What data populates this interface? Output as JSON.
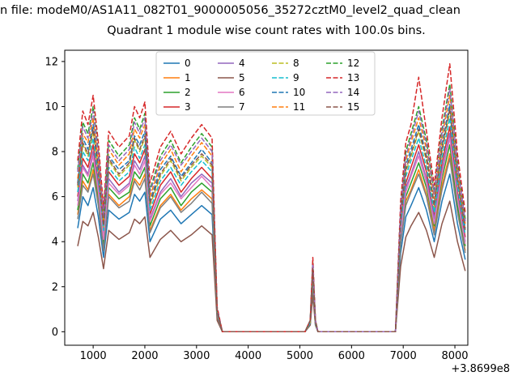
{
  "header": {
    "file_line": "n file: modeM0/AS1A11_082T01_9000005056_35272cztM0_level2_quad_clean"
  },
  "chart_data": {
    "type": "line",
    "title": "Quadrant 1 module wise count rates with 100.0s bins.",
    "xlabel": "",
    "ylabel": "",
    "x_offset_label": "+3.8699e8",
    "xlim": [
      450,
      8250
    ],
    "ylim": [
      -0.6,
      12.5
    ],
    "x_ticks": [
      1000,
      2000,
      3000,
      4000,
      5000,
      6000,
      7000,
      8000
    ],
    "y_ticks": [
      0,
      2,
      4,
      6,
      8,
      10,
      12
    ],
    "grid": false,
    "legend_loc": "upper center",
    "legend_columns": 4,
    "x": [
      700,
      800,
      900,
      1000,
      1100,
      1200,
      1300,
      1500,
      1700,
      1800,
      1900,
      2000,
      2100,
      2300,
      2500,
      2700,
      2900,
      3100,
      3300,
      3400,
      3500,
      5100,
      5200,
      5250,
      5300,
      5350,
      6850,
      6950,
      7050,
      7150,
      7300,
      7450,
      7600,
      7750,
      7900,
      8050,
      8200
    ],
    "series": [
      {
        "name": "0",
        "color": "#1f77b4",
        "dash": false,
        "values": [
          4.6,
          6.0,
          5.6,
          6.4,
          5.1,
          3.3,
          5.4,
          5.0,
          5.3,
          6.1,
          5.8,
          6.2,
          4.0,
          5.0,
          5.4,
          4.8,
          5.2,
          5.6,
          5.2,
          0.6,
          0,
          0,
          0.3,
          2.0,
          0.3,
          0,
          0,
          3.5,
          5.1,
          5.6,
          6.4,
          5.4,
          4.0,
          5.8,
          7.0,
          4.8,
          3.2
        ]
      },
      {
        "name": "1",
        "color": "#ff7f0e",
        "dash": false,
        "values": [
          5.2,
          6.7,
          6.3,
          7.2,
          5.8,
          3.7,
          6.1,
          5.6,
          6.0,
          6.8,
          6.5,
          7.0,
          4.5,
          5.6,
          6.1,
          5.4,
          5.9,
          6.3,
          5.9,
          0.7,
          0,
          0,
          0.4,
          2.2,
          0.4,
          0,
          0,
          4.0,
          5.8,
          6.3,
          7.2,
          6.1,
          4.5,
          6.5,
          7.9,
          5.4,
          3.6
        ]
      },
      {
        "name": "2",
        "color": "#2ca02c",
        "dash": false,
        "values": [
          5.4,
          7.0,
          6.6,
          7.5,
          6.0,
          3.9,
          6.4,
          5.9,
          6.2,
          7.1,
          6.8,
          7.3,
          4.7,
          5.9,
          6.4,
          5.6,
          6.2,
          6.6,
          6.2,
          0.8,
          0,
          0,
          0.4,
          2.3,
          0.4,
          0,
          0,
          4.1,
          6.0,
          6.6,
          7.5,
          6.4,
          4.7,
          6.8,
          8.3,
          5.6,
          3.8
        ]
      },
      {
        "name": "3",
        "color": "#d62728",
        "dash": false,
        "values": [
          6.0,
          7.7,
          7.3,
          8.3,
          6.6,
          4.3,
          7.1,
          6.5,
          6.9,
          7.9,
          7.5,
          8.1,
          5.2,
          6.5,
          7.1,
          6.2,
          6.8,
          7.3,
          6.8,
          0.8,
          0,
          0,
          0.4,
          2.6,
          0.4,
          0,
          0,
          4.6,
          6.6,
          7.3,
          8.3,
          7.1,
          5.1,
          7.5,
          9.1,
          6.2,
          4.2
        ]
      },
      {
        "name": "4",
        "color": "#9467bd",
        "dash": false,
        "values": [
          5.8,
          7.4,
          7.0,
          8.0,
          6.4,
          4.2,
          6.8,
          6.2,
          6.6,
          7.6,
          7.2,
          7.8,
          5.0,
          6.2,
          6.8,
          6.0,
          6.6,
          7.0,
          6.6,
          0.8,
          0,
          0,
          0.4,
          2.5,
          0.4,
          0,
          0,
          4.4,
          6.4,
          7.0,
          8.0,
          6.8,
          5.0,
          7.2,
          8.8,
          6.0,
          4.0
        ]
      },
      {
        "name": "5",
        "color": "#8c564b",
        "dash": false,
        "values": [
          3.8,
          4.9,
          4.7,
          5.3,
          4.2,
          2.8,
          4.5,
          4.1,
          4.4,
          5.0,
          4.8,
          5.1,
          3.3,
          4.1,
          4.5,
          4.0,
          4.3,
          4.7,
          4.3,
          0.5,
          0,
          0,
          0.3,
          1.6,
          0.3,
          0,
          0,
          2.9,
          4.2,
          4.7,
          5.3,
          4.5,
          3.3,
          4.8,
          5.8,
          4.0,
          2.7
        ]
      },
      {
        "name": "6",
        "color": "#e377c2",
        "dash": false,
        "values": [
          5.6,
          7.3,
          6.9,
          7.8,
          6.2,
          4.1,
          6.6,
          6.1,
          6.5,
          7.4,
          7.0,
          7.6,
          4.9,
          6.1,
          6.6,
          5.9,
          6.4,
          6.9,
          6.4,
          0.8,
          0,
          0,
          0.4,
          2.4,
          0.4,
          0,
          0,
          4.3,
          6.2,
          6.9,
          7.8,
          6.6,
          4.8,
          7.0,
          8.6,
          5.9,
          3.9
        ]
      },
      {
        "name": "7",
        "color": "#7f7f7f",
        "dash": false,
        "values": [
          5.0,
          6.5,
          6.2,
          7.0,
          5.6,
          3.6,
          6.0,
          5.5,
          5.8,
          6.7,
          6.3,
          6.8,
          4.4,
          5.5,
          6.0,
          5.3,
          5.7,
          6.2,
          5.7,
          0.7,
          0,
          0,
          0.4,
          2.2,
          0.4,
          0,
          0,
          3.9,
          5.6,
          6.2,
          7.0,
          6.0,
          4.3,
          6.3,
          7.7,
          5.3,
          3.5
        ]
      },
      {
        "name": "8",
        "color": "#bcbd22",
        "dash": true,
        "values": [
          6.4,
          8.3,
          7.8,
          8.9,
          7.1,
          4.6,
          7.6,
          6.9,
          7.4,
          8.5,
          8.0,
          8.6,
          5.6,
          6.9,
          7.6,
          6.7,
          7.3,
          7.8,
          7.3,
          0.9,
          0,
          0,
          0.4,
          2.8,
          0.4,
          0,
          0,
          4.9,
          7.1,
          7.8,
          8.9,
          7.6,
          5.5,
          8.0,
          9.8,
          6.7,
          4.5
        ]
      },
      {
        "name": "9",
        "color": "#17becf",
        "dash": true,
        "values": [
          6.2,
          8.0,
          7.6,
          8.6,
          6.9,
          4.5,
          7.3,
          6.7,
          7.1,
          8.2,
          7.7,
          8.3,
          5.4,
          6.7,
          7.3,
          6.5,
          7.1,
          7.6,
          7.1,
          0.9,
          0,
          0,
          0.4,
          2.7,
          0.4,
          0,
          0,
          4.7,
          6.9,
          7.6,
          8.6,
          7.3,
          5.3,
          7.7,
          9.5,
          6.5,
          4.3
        ]
      },
      {
        "name": "10",
        "color": "#1f77b4",
        "dash": true,
        "values": [
          6.6,
          8.6,
          8.1,
          9.2,
          7.4,
          4.8,
          7.8,
          7.2,
          7.6,
          8.7,
          8.3,
          8.9,
          5.8,
          7.2,
          7.8,
          6.9,
          7.5,
          8.1,
          7.5,
          0.9,
          0,
          0,
          0.5,
          2.9,
          0.5,
          0,
          0,
          5.1,
          7.4,
          8.1,
          9.2,
          7.8,
          5.7,
          8.3,
          10.1,
          6.9,
          4.6
        ]
      },
      {
        "name": "11",
        "color": "#ff7f0e",
        "dash": true,
        "values": [
          6.8,
          8.8,
          8.4,
          9.5,
          7.6,
          4.9,
          8.1,
          7.4,
          7.9,
          9.0,
          8.6,
          9.2,
          6.0,
          7.4,
          8.1,
          7.1,
          7.8,
          8.4,
          7.8,
          1.0,
          0,
          0,
          0.5,
          2.9,
          0.5,
          0,
          0,
          5.2,
          7.6,
          8.4,
          9.5,
          8.1,
          5.9,
          8.6,
          10.5,
          7.1,
          4.8
        ]
      },
      {
        "name": "12",
        "color": "#2ca02c",
        "dash": true,
        "values": [
          7.2,
          9.3,
          8.8,
          10.0,
          8.0,
          5.2,
          8.5,
          7.8,
          8.3,
          9.5,
          9.0,
          9.7,
          6.3,
          7.8,
          8.5,
          7.5,
          8.2,
          8.8,
          8.2,
          1.0,
          0,
          0,
          0.5,
          3.1,
          0.5,
          0,
          0,
          5.5,
          8.0,
          8.8,
          10.0,
          8.5,
          6.2,
          9.0,
          11.0,
          7.5,
          5.0
        ]
      },
      {
        "name": "13",
        "color": "#d62728",
        "dash": true,
        "values": [
          7.6,
          9.8,
          9.2,
          10.5,
          8.4,
          5.5,
          8.9,
          8.2,
          8.7,
          10.0,
          9.5,
          10.2,
          6.6,
          8.2,
          8.9,
          7.9,
          8.6,
          9.2,
          8.6,
          1.1,
          0,
          0,
          0.5,
          3.3,
          0.5,
          0,
          0,
          5.8,
          8.4,
          9.2,
          11.3,
          8.9,
          6.5,
          9.5,
          11.9,
          7.9,
          5.3
        ]
      },
      {
        "name": "14",
        "color": "#9467bd",
        "dash": true,
        "values": [
          7.1,
          9.1,
          8.6,
          9.8,
          7.8,
          5.1,
          8.3,
          7.6,
          8.1,
          9.3,
          8.8,
          9.5,
          6.2,
          7.6,
          8.3,
          7.4,
          8.0,
          8.6,
          8.0,
          1.0,
          0,
          0,
          0.5,
          3.0,
          0.5,
          0,
          0,
          5.4,
          7.8,
          8.6,
          9.8,
          8.3,
          6.1,
          8.8,
          10.8,
          7.4,
          4.9
        ]
      },
      {
        "name": "15",
        "color": "#8c564b",
        "dash": true,
        "values": [
          6.5,
          8.4,
          7.9,
          9.0,
          7.2,
          4.7,
          7.7,
          7.0,
          7.5,
          8.6,
          8.1,
          8.7,
          5.7,
          7.0,
          7.7,
          6.8,
          7.4,
          7.9,
          7.4,
          0.9,
          0,
          0,
          0.5,
          2.8,
          0.5,
          0,
          0,
          5.0,
          7.2,
          7.9,
          9.0,
          7.7,
          5.6,
          8.1,
          9.9,
          6.8,
          4.5
        ]
      }
    ]
  }
}
